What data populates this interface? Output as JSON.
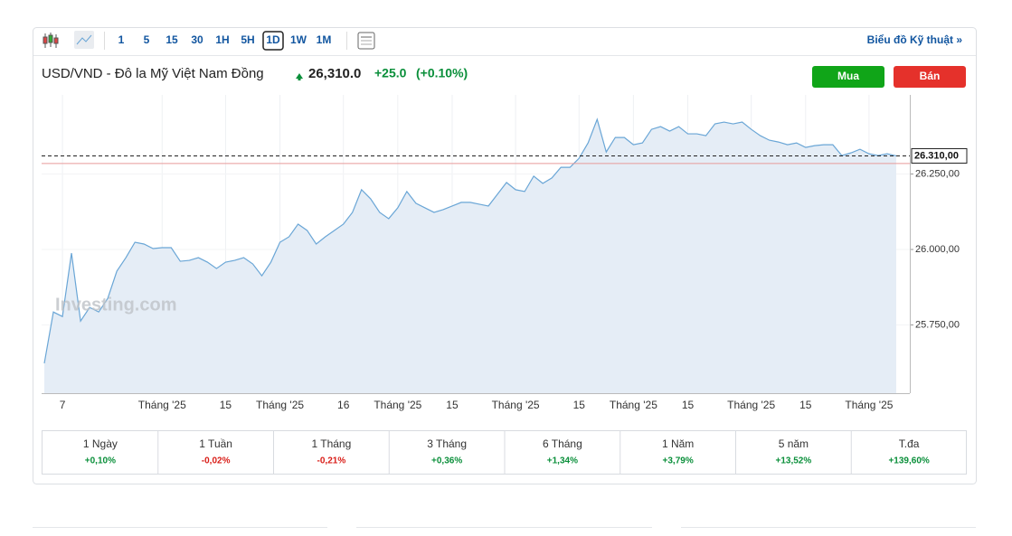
{
  "toolbar": {
    "intervals": [
      "1",
      "5",
      "15",
      "30",
      "1H",
      "5H",
      "1D",
      "1W",
      "1M"
    ],
    "active_interval": 6,
    "technical_link": "Biểu đồ Kỹ thuật »"
  },
  "header": {
    "name": "USD/VND - Đô la Mỹ Việt Nam Đồng",
    "price": "26,310.0",
    "change": "+25.0",
    "change_pct": "(+0.10%)"
  },
  "buttons": {
    "buy": "Mua",
    "sell": "Bán"
  },
  "watermark": "Investing.com",
  "chart_data": {
    "type": "area",
    "color": "#6aa6d6",
    "fill": "#e5edf6",
    "grid": true,
    "categories": [
      null,
      null,
      "7",
      null,
      null,
      null,
      null,
      null,
      null,
      null,
      null,
      null,
      null,
      "Tháng '25",
      null,
      null,
      null,
      null,
      null,
      null,
      "15",
      null,
      null,
      null,
      null,
      null,
      "Tháng '25",
      null,
      null,
      null,
      null,
      null,
      null,
      "16",
      null,
      null,
      null,
      null,
      null,
      "Tháng '25",
      null,
      null,
      null,
      null,
      null,
      "15",
      null,
      null,
      null,
      null,
      null,
      null,
      "Tháng '25",
      null,
      null,
      null,
      null,
      null,
      null,
      "15",
      null,
      null,
      null,
      null,
      null,
      "Tháng '25",
      null,
      null,
      null,
      null,
      null,
      "15",
      null,
      null,
      null,
      null,
      null,
      null,
      "Tháng '25",
      null,
      null,
      null,
      null,
      null,
      "15",
      null,
      null,
      null,
      null,
      null,
      null,
      "Tháng '25",
      null,
      null,
      null
    ],
    "values": [
      25623,
      25793,
      25778,
      25988,
      25763,
      25808,
      25793,
      25838,
      25928,
      25973,
      26024,
      26018,
      26003,
      26006,
      26006,
      25961,
      25964,
      25973,
      25958,
      25937,
      25958,
      25964,
      25973,
      25952,
      25913,
      25958,
      26024,
      26042,
      26084,
      26063,
      26018,
      26042,
      26063,
      26084,
      26123,
      26198,
      26168,
      26123,
      26102,
      26138,
      26192,
      26153,
      26138,
      26123,
      26132,
      26144,
      26156,
      26156,
      26150,
      26144,
      26183,
      26222,
      26198,
      26192,
      26243,
      26219,
      26237,
      26272,
      26272,
      26302,
      26353,
      26431,
      26323,
      26371,
      26371,
      26347,
      26353,
      26398,
      26407,
      26392,
      26407,
      26383,
      26383,
      26377,
      26416,
      26422,
      26416,
      26422,
      26398,
      26377,
      26362,
      26356,
      26347,
      26353,
      26338,
      26344,
      26347,
      26347,
      26311,
      26320,
      26332,
      26317,
      26311,
      26317,
      26310
    ],
    "ylim": [
      25524,
      26512
    ],
    "yticks": [
      {
        "value": 25750,
        "label": "25.750,00"
      },
      {
        "value": 26000,
        "label": "26.000,00"
      },
      {
        "value": 26250,
        "label": "26.250,00"
      }
    ],
    "last_price": {
      "value": 26310,
      "label": "26.310,00"
    },
    "previous_close": 26285
  },
  "performance": [
    {
      "period": "1 Ngày",
      "change": "+0,10%"
    },
    {
      "period": "1 Tuần",
      "change": "-0,02%"
    },
    {
      "period": "1 Tháng",
      "change": "-0,21%"
    },
    {
      "period": "3 Tháng",
      "change": "+0,36%"
    },
    {
      "period": "6 Tháng",
      "change": "+1,34%"
    },
    {
      "period": "1 Năm",
      "change": "+3,79%"
    },
    {
      "period": "5 năm",
      "change": "+13,52%"
    },
    {
      "period": "T.đa",
      "change": "+139,60%"
    }
  ]
}
